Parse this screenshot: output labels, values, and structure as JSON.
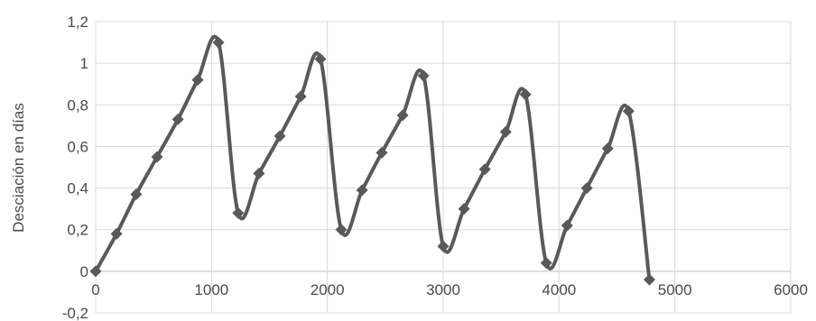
{
  "chart_data": {
    "type": "scatter",
    "title": "",
    "xlabel": "",
    "ylabel": "Desciación en días",
    "xlim": [
      0,
      6000
    ],
    "ylim": [
      -0.2,
      1.2
    ],
    "x_ticks": [
      0,
      1000,
      2000,
      3000,
      4000,
      5000,
      6000
    ],
    "y_ticks": [
      -0.2,
      0,
      0.2,
      0.4,
      0.6,
      0.8,
      1,
      1.2
    ],
    "x_tick_labels": [
      "0",
      "1000",
      "2000",
      "3000",
      "4000",
      "5000",
      "6000"
    ],
    "y_tick_labels": [
      "-0,2",
      "0",
      "0,2",
      "0,4",
      "0,6",
      "0,8",
      "1",
      "1,2"
    ],
    "grid": true,
    "smooth": true,
    "series_color": "#595959",
    "marker": "diamond",
    "series": [
      {
        "points": [
          [
            0,
            0
          ],
          [
            180,
            0.18
          ],
          [
            350,
            0.37
          ],
          [
            530,
            0.55
          ],
          [
            710,
            0.73
          ],
          [
            880,
            0.92
          ],
          [
            1060,
            1.1
          ],
          [
            1230,
            0.28
          ],
          [
            1410,
            0.47
          ],
          [
            1590,
            0.65
          ],
          [
            1770,
            0.84
          ],
          [
            1940,
            1.02
          ],
          [
            2120,
            0.2
          ],
          [
            2300,
            0.39
          ],
          [
            2470,
            0.57
          ],
          [
            2650,
            0.75
          ],
          [
            2830,
            0.94
          ],
          [
            3000,
            0.12
          ],
          [
            3180,
            0.3
          ],
          [
            3360,
            0.49
          ],
          [
            3540,
            0.67
          ],
          [
            3710,
            0.85
          ],
          [
            3890,
            0.04
          ],
          [
            4070,
            0.22
          ],
          [
            4240,
            0.4
          ],
          [
            4420,
            0.59
          ],
          [
            4600,
            0.77
          ],
          [
            4780,
            -0.04
          ]
        ]
      }
    ]
  }
}
